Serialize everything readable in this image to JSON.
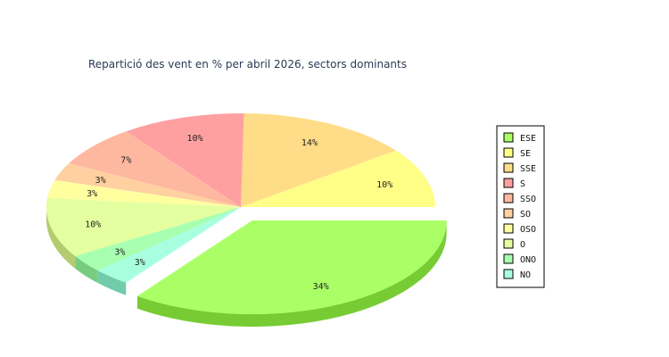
{
  "chart_data": {
    "type": "pie",
    "title": "Repartició des vent en % per abril 2026, sectors dominants",
    "slices": [
      {
        "name": "ESE",
        "value": 34,
        "label": "34%",
        "color": "#aaff66",
        "side": "#77cc33",
        "exploded": true
      },
      {
        "name": "SE",
        "value": 10,
        "label": "10%",
        "color": "#ffff88",
        "side": "#cccc55",
        "exploded": false
      },
      {
        "name": "SSE",
        "value": 14,
        "label": "14%",
        "color": "#ffdd88",
        "side": "#ccaa55",
        "exploded": false
      },
      {
        "name": "S",
        "value": 10,
        "label": "10%",
        "color": "#ffa0a0",
        "side": "#cc7070",
        "exploded": false
      },
      {
        "name": "SSO",
        "value": 7,
        "label": "7%",
        "color": "#ffb8a0",
        "side": "#cc8870",
        "exploded": false
      },
      {
        "name": "SO",
        "value": 3,
        "label": "3%",
        "color": "#ffd0a0",
        "side": "#cca070",
        "exploded": false
      },
      {
        "name": "OSO",
        "value": 3,
        "label": "3%",
        "color": "#ffffa0",
        "side": "#cccc70",
        "exploded": false
      },
      {
        "name": "O",
        "value": 10,
        "label": "10%",
        "color": "#e4ffa0",
        "side": "#b4cc70",
        "exploded": false
      },
      {
        "name": "ONO",
        "value": 3,
        "label": "3%",
        "color": "#a8ffb0",
        "side": "#78cc80",
        "exploded": false
      },
      {
        "name": "NO",
        "value": 3,
        "label": "3%",
        "color": "#a8ffe0",
        "side": "#70ccaa",
        "exploded": false
      }
    ],
    "legend_position": "right"
  }
}
